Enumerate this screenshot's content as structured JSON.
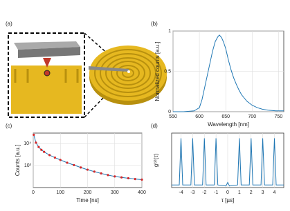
{
  "panel_labels": [
    "(a)",
    "(b)",
    "(c)",
    "(d)"
  ],
  "chart_data": [
    {
      "type": "line",
      "xlabel": "Wavelength [nm]",
      "ylabel": "Normalized counts [a.u.]",
      "xlim": [
        550,
        760
      ],
      "ylim": [
        0,
        1
      ],
      "xticks": [
        550,
        600,
        650,
        700,
        750
      ],
      "yticks": [
        0,
        0.5,
        1
      ],
      "grid": true,
      "log_y": false,
      "x": [
        550,
        570,
        590,
        600,
        605,
        610,
        615,
        620,
        625,
        630,
        635,
        638,
        642,
        646,
        650,
        655,
        660,
        665,
        670,
        675,
        680,
        690,
        700,
        710,
        720,
        730,
        745,
        760
      ],
      "series": [
        {
          "color": "#1f77b4",
          "marker": "none",
          "values": [
            0.0,
            0.0,
            0.01,
            0.05,
            0.15,
            0.3,
            0.45,
            0.6,
            0.75,
            0.87,
            0.93,
            0.95,
            0.92,
            0.86,
            0.78,
            0.64,
            0.52,
            0.42,
            0.34,
            0.27,
            0.21,
            0.13,
            0.08,
            0.05,
            0.03,
            0.02,
            0.01,
            0.01
          ]
        }
      ]
    },
    {
      "type": "line",
      "xlabel": "Time [ns]",
      "ylabel": "Counts [a.u.]",
      "xlim": [
        0,
        400
      ],
      "ylim": [
        100,
        30000
      ],
      "xticks": [
        0,
        100,
        200,
        300,
        400
      ],
      "yticks": [
        {
          "value": 1000,
          "label": "10³"
        },
        {
          "value": 10000,
          "label": "10⁴"
        }
      ],
      "grid": true,
      "log_y": true,
      "x": [
        2,
        10,
        20,
        30,
        40,
        60,
        80,
        100,
        125,
        150,
        175,
        200,
        225,
        250,
        275,
        300,
        325,
        350,
        375,
        400
      ],
      "series": [
        {
          "color": "#1f77b4",
          "marker": "none",
          "values": [
            25000,
            11000,
            7000,
            5200,
            4200,
            3000,
            2300,
            1800,
            1350,
            1050,
            820,
            650,
            530,
            440,
            370,
            320,
            290,
            265,
            245,
            230
          ]
        },
        {
          "color": "#d62728",
          "marker": "circle",
          "values": [
            25000,
            11000,
            7000,
            5200,
            4200,
            3000,
            2300,
            1800,
            1350,
            1050,
            820,
            650,
            530,
            440,
            370,
            320,
            290,
            265,
            245,
            230
          ]
        }
      ]
    },
    {
      "type": "line",
      "xlabel": "τ [µs]",
      "ylabel": "g⁽²⁾(τ)",
      "xlim": [
        -4.8,
        4.8
      ],
      "ylim": [
        0,
        1.05
      ],
      "xticks": [
        -4,
        -3,
        -2,
        -1,
        0,
        1,
        2,
        3,
        4
      ],
      "yticks": [],
      "grid": true,
      "log_y": false,
      "x": [
        -4.8,
        -4.15,
        -4,
        -3.85,
        -3.15,
        -3,
        -2.85,
        -2.15,
        -2,
        -1.85,
        -1.15,
        -1,
        -0.85,
        -0.15,
        0,
        0.15,
        0.85,
        1,
        1.15,
        1.85,
        2,
        2.15,
        2.85,
        3,
        3.15,
        3.85,
        4,
        4.15,
        4.8
      ],
      "series": [
        {
          "color": "#1f77b4",
          "marker": "none",
          "values": [
            0.05,
            0.05,
            0.95,
            0.05,
            0.05,
            0.95,
            0.05,
            0.05,
            0.95,
            0.05,
            0.05,
            0.95,
            0.05,
            0.03,
            0.1,
            0.03,
            0.05,
            0.95,
            0.05,
            0.05,
            0.95,
            0.05,
            0.05,
            0.95,
            0.05,
            0.05,
            0.95,
            0.05,
            0.05
          ]
        }
      ]
    }
  ]
}
